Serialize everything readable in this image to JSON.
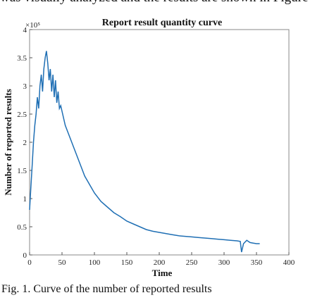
{
  "page": {
    "top_text": "was visually analyzed and the results are shown in Figure",
    "caption": "Fig. 1. Curve of the number of reported results"
  },
  "chart_data": {
    "type": "line",
    "title": "Report result quantity curve",
    "xlabel": "Time",
    "ylabel": "Number of reported results",
    "y_multiplier_label": "×10⁵",
    "xlim": [
      0,
      400
    ],
    "ylim": [
      0,
      4
    ],
    "y_scale_factor": 100000,
    "x_ticks": [
      "0",
      "50",
      "100",
      "150",
      "200",
      "250",
      "300",
      "350",
      "400"
    ],
    "y_ticks": [
      "0",
      "0.5",
      "1",
      "1.5",
      "2",
      "2.5",
      "3",
      "3.5",
      "4"
    ],
    "grid": false,
    "line_color": "#1f6fb4",
    "series": [
      {
        "x": [
          0,
          2,
          4,
          6,
          8,
          10,
          12,
          14,
          16,
          18,
          20,
          22,
          24,
          26,
          28,
          30,
          32,
          34,
          36,
          38,
          40,
          42,
          44,
          46,
          48,
          50,
          55,
          60,
          65,
          70,
          75,
          80,
          85,
          90,
          95,
          100,
          110,
          120,
          130,
          140,
          150,
          160,
          170,
          180,
          190,
          200,
          210,
          220,
          230,
          240,
          250,
          260,
          270,
          280,
          290,
          300,
          310,
          320,
          325,
          327,
          330,
          335,
          340,
          345,
          350,
          355
        ],
        "y": [
          0.8,
          1.2,
          1.6,
          2.0,
          2.3,
          2.5,
          2.8,
          2.6,
          3.0,
          3.2,
          2.9,
          3.3,
          3.5,
          3.62,
          3.4,
          3.1,
          3.3,
          2.9,
          3.2,
          2.8,
          3.1,
          2.7,
          2.9,
          2.6,
          2.65,
          2.55,
          2.3,
          2.15,
          2.0,
          1.85,
          1.7,
          1.55,
          1.4,
          1.3,
          1.2,
          1.1,
          0.95,
          0.85,
          0.75,
          0.68,
          0.6,
          0.55,
          0.5,
          0.45,
          0.42,
          0.4,
          0.38,
          0.36,
          0.34,
          0.33,
          0.32,
          0.31,
          0.3,
          0.29,
          0.28,
          0.27,
          0.26,
          0.25,
          0.24,
          0.05,
          0.2,
          0.26,
          0.22,
          0.21,
          0.2,
          0.2
        ]
      }
    ]
  }
}
